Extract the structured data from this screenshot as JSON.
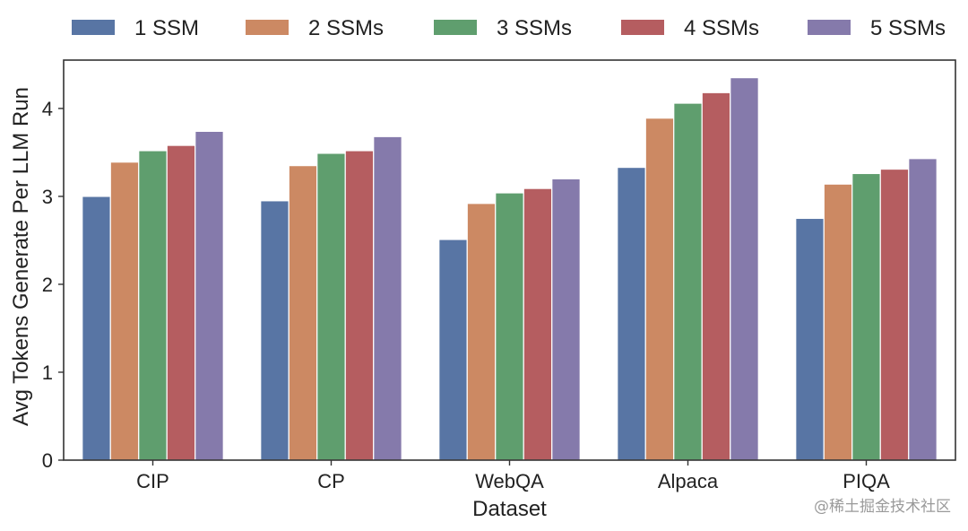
{
  "chart_data": {
    "type": "bar",
    "categories": [
      "CIP",
      "CP",
      "WebQA",
      "Alpaca",
      "PIQA"
    ],
    "series": [
      {
        "name": "1 SSM",
        "color": "#5875a4",
        "values": [
          3.0,
          2.95,
          2.51,
          3.33,
          2.75
        ]
      },
      {
        "name": "2 SSMs",
        "color": "#cc8963",
        "values": [
          3.39,
          3.35,
          2.92,
          3.89,
          3.14
        ]
      },
      {
        "name": "3 SSMs",
        "color": "#5f9e6e",
        "values": [
          3.52,
          3.49,
          3.04,
          4.06,
          3.26
        ]
      },
      {
        "name": "4 SSMs",
        "color": "#b55d60",
        "values": [
          3.58,
          3.52,
          3.09,
          4.18,
          3.31
        ]
      },
      {
        "name": "5 SSMs",
        "color": "#857aab",
        "values": [
          3.74,
          3.68,
          3.2,
          4.35,
          3.43
        ]
      }
    ],
    "xlabel": "Dataset",
    "ylabel": "Avg Tokens Generate Per LLM Run",
    "ylim": [
      0,
      4.55
    ],
    "yticks": [
      0,
      1,
      2,
      3,
      4
    ],
    "legend_position": "top"
  },
  "watermark": "@稀土掘金技术社区"
}
